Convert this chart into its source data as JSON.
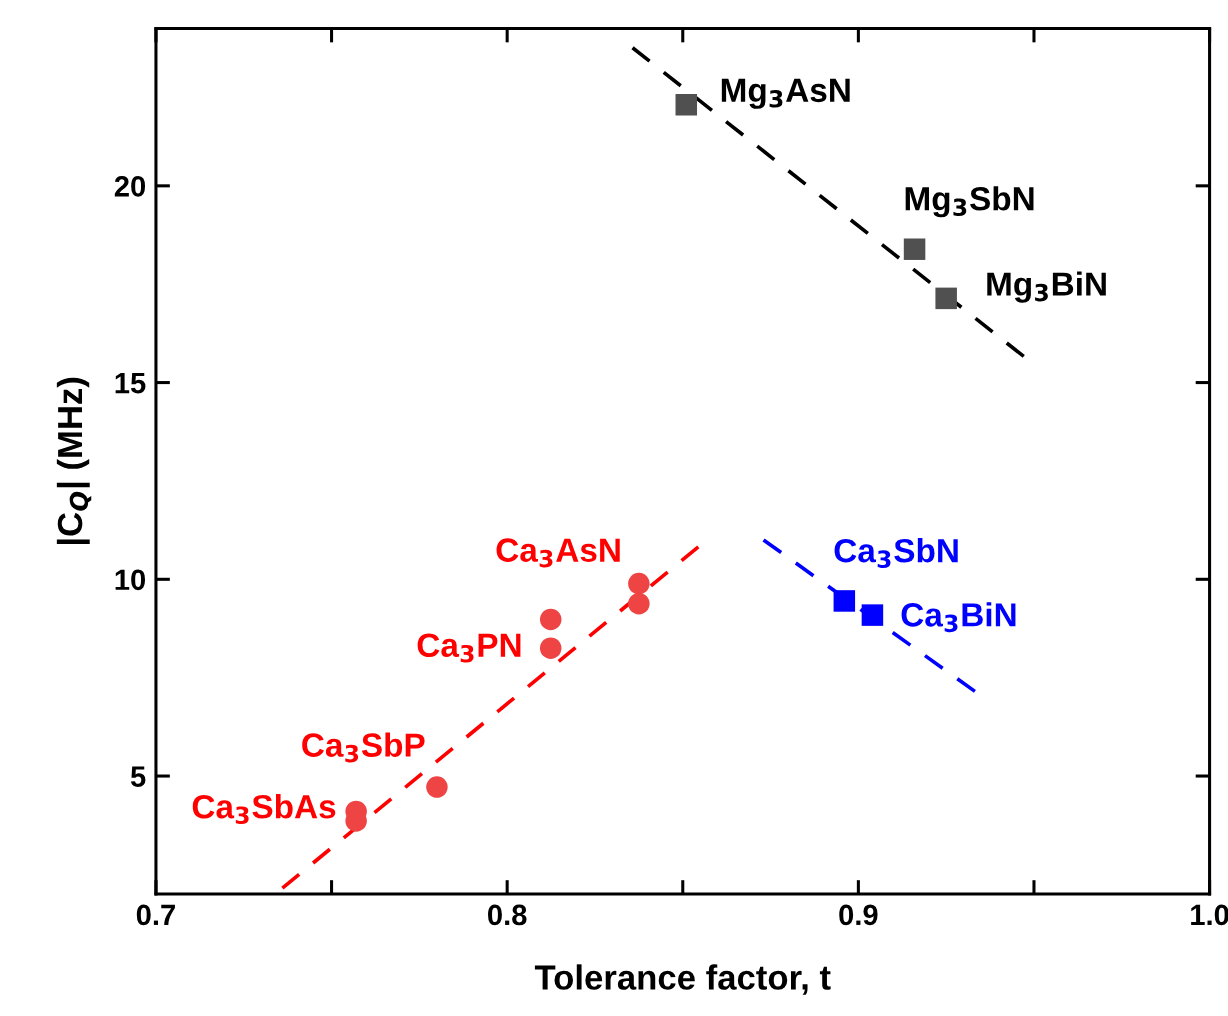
{
  "chart_data": {
    "type": "scatter",
    "xlabel": "Tolerance factor, t",
    "ylabel": "|C$_{Q}$| (MHz)",
    "xlim": [
      0.7,
      1.0
    ],
    "ylim": [
      2,
      24
    ],
    "xticks": [
      0.7,
      {
        "value": 0.75,
        "label": null
      },
      0.8,
      {
        "value": 0.85,
        "label": null
      },
      0.9,
      {
        "value": 0.95,
        "label": null
      },
      {
        "value": 1.0,
        "label": "1.0"
      }
    ],
    "yticks": [
      5,
      10,
      15,
      20
    ],
    "grid": false,
    "legend": false,
    "series": [
      {
        "marker": "square",
        "color": "#505050",
        "x": [
          0.851,
          0.916,
          0.925
        ],
        "values": [
          22.06,
          18.39,
          17.14
        ]
      },
      {
        "marker": "square",
        "color": "#0000ff",
        "x": [
          0.896,
          0.904
        ],
        "values": [
          9.45,
          9.09
        ]
      },
      {
        "marker": "circle",
        "color": "#ee4444",
        "x": [
          0.8375,
          0.8375,
          0.8124,
          0.8124,
          0.78,
          0.757,
          0.757
        ],
        "values": [
          9.89,
          9.38,
          8.98,
          8.25,
          4.72,
          4.1,
          3.86
        ]
      },
      {
        "type": "line",
        "line_style": "dashed",
        "color": "#000000",
        "x": [
          0.8357,
          0.948
        ],
        "values": [
          23.51,
          15.6
        ]
      },
      {
        "type": "line",
        "line_style": "dashed",
        "color": "#ff0000",
        "x": [
          0.736,
          0.8545
        ],
        "values": [
          2.15,
          10.83
        ]
      },
      {
        "type": "line",
        "line_style": "dashed",
        "color": "#0000ff",
        "x": [
          0.873,
          0.934
        ],
        "values": [
          11.0,
          7.1
        ]
      }
    ],
    "annotations": [
      {
        "text": "Mg$_{3}$AsN",
        "x": 0.851,
        "y": 22.06
      },
      {
        "text": "Mg$_{3}$SbN",
        "x": 0.916,
        "y": 18.39
      },
      {
        "text": "Mg$_{3}$BiN",
        "x": 0.925,
        "y": 17.14
      },
      {
        "text": "Ca$_{3}$SbN",
        "x": 0.896,
        "y": 9.45
      },
      {
        "text": "Ca$_{3}$BiN",
        "x": 0.904,
        "y": 9.09
      },
      {
        "text": "Ca$_{3}$AsN",
        "x": 0.8375,
        "y": 9.89
      },
      {
        "text": "Ca$_{3}$PN",
        "x": 0.8124,
        "y": 8.25
      },
      {
        "text": "Ca$_{3}$SbP",
        "x": 0.78,
        "y": 4.72
      },
      {
        "text": "Ca$_{3}$SbAs",
        "x": 0.757,
        "y": 3.86
      }
    ]
  }
}
